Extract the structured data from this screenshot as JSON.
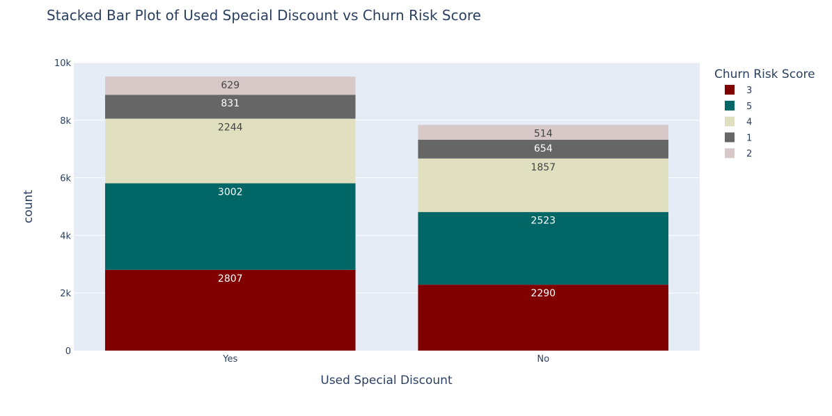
{
  "chart_data": {
    "type": "bar",
    "barmode": "stack",
    "title": "Stacked Bar Plot of Used Special Discount vs Churn Risk Score",
    "xlabel": "Used Special Discount",
    "ylabel": "count",
    "categories": [
      "Yes",
      "No"
    ],
    "ylim": [
      0,
      10000
    ],
    "yticks": [
      {
        "value": 0,
        "label": "0"
      },
      {
        "value": 2000,
        "label": "2k"
      },
      {
        "value": 4000,
        "label": "4k"
      },
      {
        "value": 6000,
        "label": "6k"
      },
      {
        "value": 8000,
        "label": "8k"
      },
      {
        "value": 10000,
        "label": "10k"
      }
    ],
    "grid": true,
    "legend": {
      "title": "Churn Risk Score",
      "placement": "top-right"
    },
    "series": [
      {
        "name": "3",
        "values": [
          2807,
          2290
        ],
        "color": "#800000",
        "label_color": "#ffffff"
      },
      {
        "name": "5",
        "values": [
          3002,
          2523
        ],
        "color": "#006666",
        "label_color": "#ffffff"
      },
      {
        "name": "4",
        "values": [
          2244,
          1857
        ],
        "color": "#e0e0c0",
        "label_color": "#444444"
      },
      {
        "name": "1",
        "values": [
          831,
          654
        ],
        "color": "#666666",
        "label_color": "#ffffff"
      },
      {
        "name": "2",
        "values": [
          629,
          514
        ],
        "color": "#d8c8c8",
        "label_color": "#444444"
      }
    ],
    "plot_background": "#e5ecf6"
  }
}
